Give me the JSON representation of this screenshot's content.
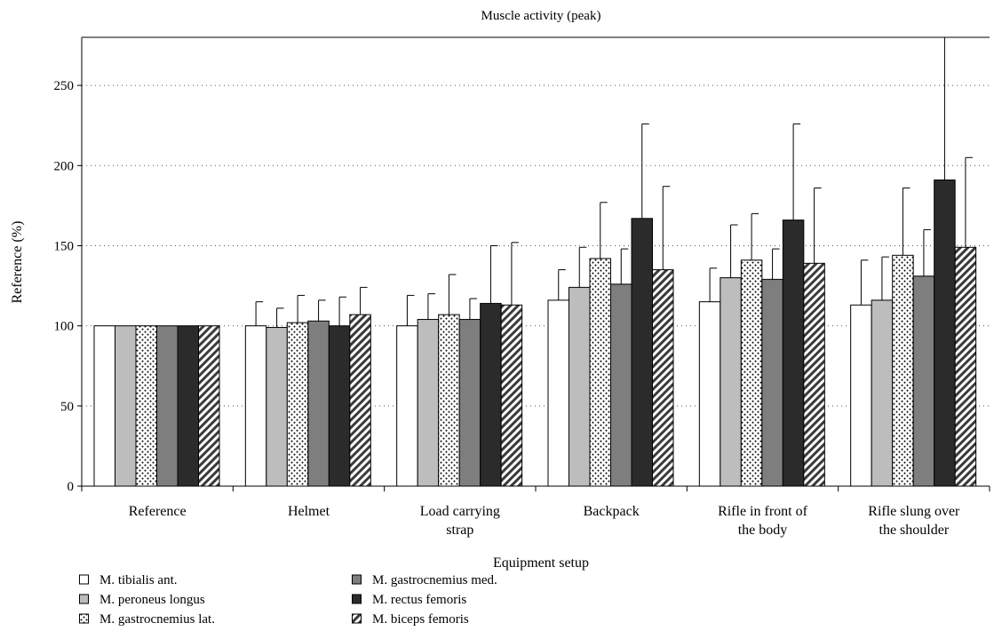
{
  "chart_data": {
    "type": "bar",
    "title": "Muscle activity (peak)",
    "xlabel": "Equipment setup",
    "ylabel": "Reference (%)",
    "ylim": [
      0,
      280
    ],
    "yticks": [
      0,
      50,
      100,
      150,
      200,
      250
    ],
    "grid": "horizontal dotted",
    "legend_position": "bottom-left",
    "categories": [
      [
        "Reference"
      ],
      [
        "Helmet"
      ],
      [
        "Load carrying",
        "strap"
      ],
      [
        "Backpack"
      ],
      [
        "Rifle in front of",
        "the body"
      ],
      [
        "Rifle slung over",
        "the shoulder"
      ]
    ],
    "series": [
      {
        "name": "M. tibialis ant.",
        "fill": "white",
        "values": [
          100,
          100,
          100,
          116,
          115,
          113
        ],
        "error": [
          0,
          15,
          19,
          19,
          21,
          28
        ]
      },
      {
        "name": "M. peroneus longus",
        "fill": "#bdbdbd",
        "values": [
          100,
          99,
          104,
          124,
          130,
          116
        ],
        "error": [
          0,
          12,
          16,
          25,
          33,
          27
        ]
      },
      {
        "name": "M. gastrocnemius lat.",
        "fill": "dots",
        "values": [
          100,
          102,
          107,
          142,
          141,
          144
        ],
        "error": [
          0,
          17,
          25,
          35,
          29,
          42
        ]
      },
      {
        "name": "M. gastrocnemius med.",
        "fill": "#7e7e7e",
        "values": [
          100,
          103,
          104,
          126,
          129,
          131
        ],
        "error": [
          0,
          13,
          13,
          22,
          19,
          29
        ]
      },
      {
        "name": "M. rectus femoris",
        "fill": "#2b2b2b",
        "values": [
          100,
          100,
          114,
          167,
          166,
          191
        ],
        "error": [
          0,
          18,
          36,
          59,
          60,
          89
        ]
      },
      {
        "name": "M. biceps femoris",
        "fill": "hatch",
        "values": [
          100,
          107,
          113,
          135,
          139,
          149
        ],
        "error": [
          0,
          17,
          39,
          52,
          47,
          56
        ]
      }
    ]
  }
}
